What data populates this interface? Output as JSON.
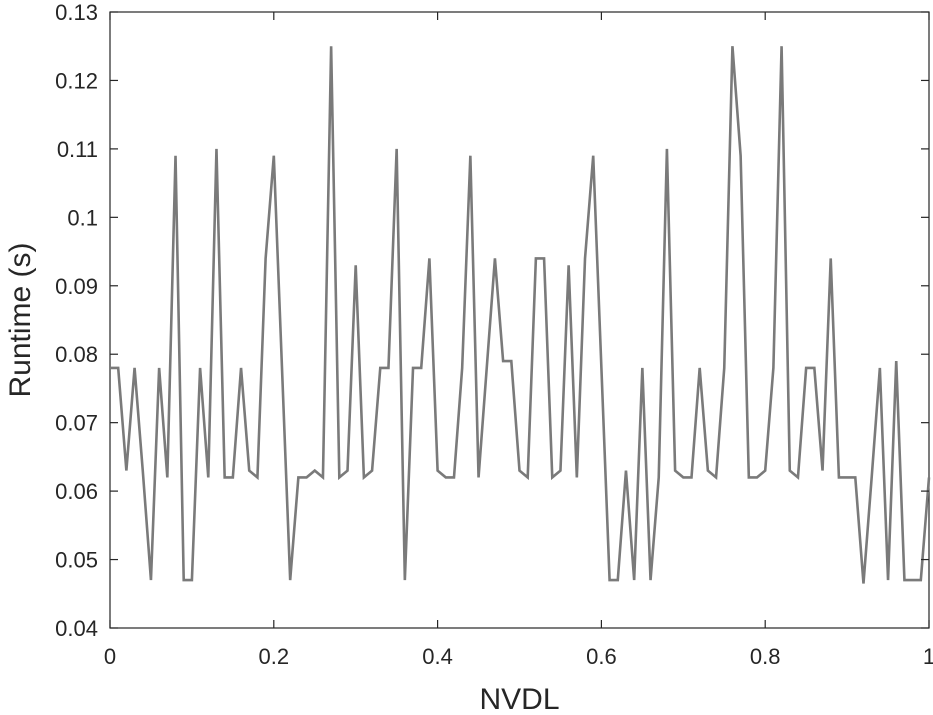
{
  "chart_data": {
    "type": "line",
    "xlabel": "NVDL",
    "ylabel": "Runtime (s)",
    "xlim": [
      0,
      1
    ],
    "ylim": [
      0.04,
      0.13
    ],
    "xticks": [
      0,
      0.2,
      0.4,
      0.6,
      0.8,
      1
    ],
    "xtick_labels": [
      "0",
      "0.2",
      "0.4",
      "0.6",
      "0.8",
      "1"
    ],
    "yticks": [
      0.04,
      0.05,
      0.06,
      0.07,
      0.08,
      0.09,
      0.1,
      0.11,
      0.12,
      0.13
    ],
    "ytick_labels": [
      "0.04",
      "0.05",
      "0.06",
      "0.07",
      "0.08",
      "0.09",
      "0.1",
      "0.11",
      "0.12",
      "0.13"
    ],
    "grid": false,
    "line_color": "#7a7a7a",
    "series": [
      {
        "x": [
          0,
          0.01,
          0.02,
          0.03,
          0.04,
          0.05,
          0.06,
          0.07,
          0.08,
          0.09,
          0.1,
          0.11,
          0.12,
          0.13,
          0.14,
          0.15,
          0.16,
          0.17,
          0.18,
          0.19,
          0.2,
          0.21,
          0.22,
          0.23,
          0.24,
          0.25,
          0.26,
          0.27,
          0.28,
          0.29,
          0.3,
          0.31,
          0.32,
          0.33,
          0.34,
          0.35,
          0.36,
          0.37,
          0.38,
          0.39,
          0.4,
          0.41,
          0.42,
          0.43,
          0.44,
          0.45,
          0.46,
          0.47,
          0.48,
          0.49,
          0.5,
          0.51,
          0.52,
          0.53,
          0.54,
          0.55,
          0.56,
          0.57,
          0.58,
          0.59,
          0.6,
          0.61,
          0.62,
          0.63,
          0.64,
          0.65,
          0.66,
          0.67,
          0.68,
          0.69,
          0.7,
          0.71,
          0.72,
          0.73,
          0.74,
          0.75,
          0.76,
          0.77,
          0.78,
          0.79,
          0.8,
          0.81,
          0.82,
          0.83,
          0.84,
          0.85,
          0.86,
          0.87,
          0.88,
          0.89,
          0.9,
          0.91,
          0.92,
          0.93,
          0.94,
          0.95,
          0.96,
          0.97,
          0.98,
          0.99,
          1.0
        ],
        "y": [
          0.078,
          0.078,
          0.063,
          0.078,
          0.063,
          0.047,
          0.078,
          0.062,
          0.109,
          0.047,
          0.047,
          0.078,
          0.062,
          0.11,
          0.062,
          0.062,
          0.078,
          0.063,
          0.062,
          0.094,
          0.109,
          0.078,
          0.047,
          0.062,
          0.062,
          0.063,
          0.062,
          0.125,
          0.062,
          0.063,
          0.093,
          0.062,
          0.063,
          0.078,
          0.078,
          0.11,
          0.047,
          0.078,
          0.078,
          0.094,
          0.063,
          0.062,
          0.062,
          0.078,
          0.109,
          0.062,
          0.078,
          0.094,
          0.079,
          0.079,
          0.063,
          0.062,
          0.094,
          0.094,
          0.062,
          0.063,
          0.093,
          0.062,
          0.094,
          0.109,
          0.078,
          0.047,
          0.047,
          0.063,
          0.047,
          0.078,
          0.047,
          0.062,
          0.11,
          0.063,
          0.062,
          0.062,
          0.078,
          0.063,
          0.062,
          0.078,
          0.125,
          0.109,
          0.062,
          0.062,
          0.063,
          0.078,
          0.125,
          0.063,
          0.062,
          0.078,
          0.078,
          0.063,
          0.094,
          0.062,
          0.062,
          0.062,
          0.0465,
          0.062,
          0.078,
          0.047,
          0.079,
          0.047,
          0.047,
          0.047,
          0.062
        ]
      }
    ]
  }
}
